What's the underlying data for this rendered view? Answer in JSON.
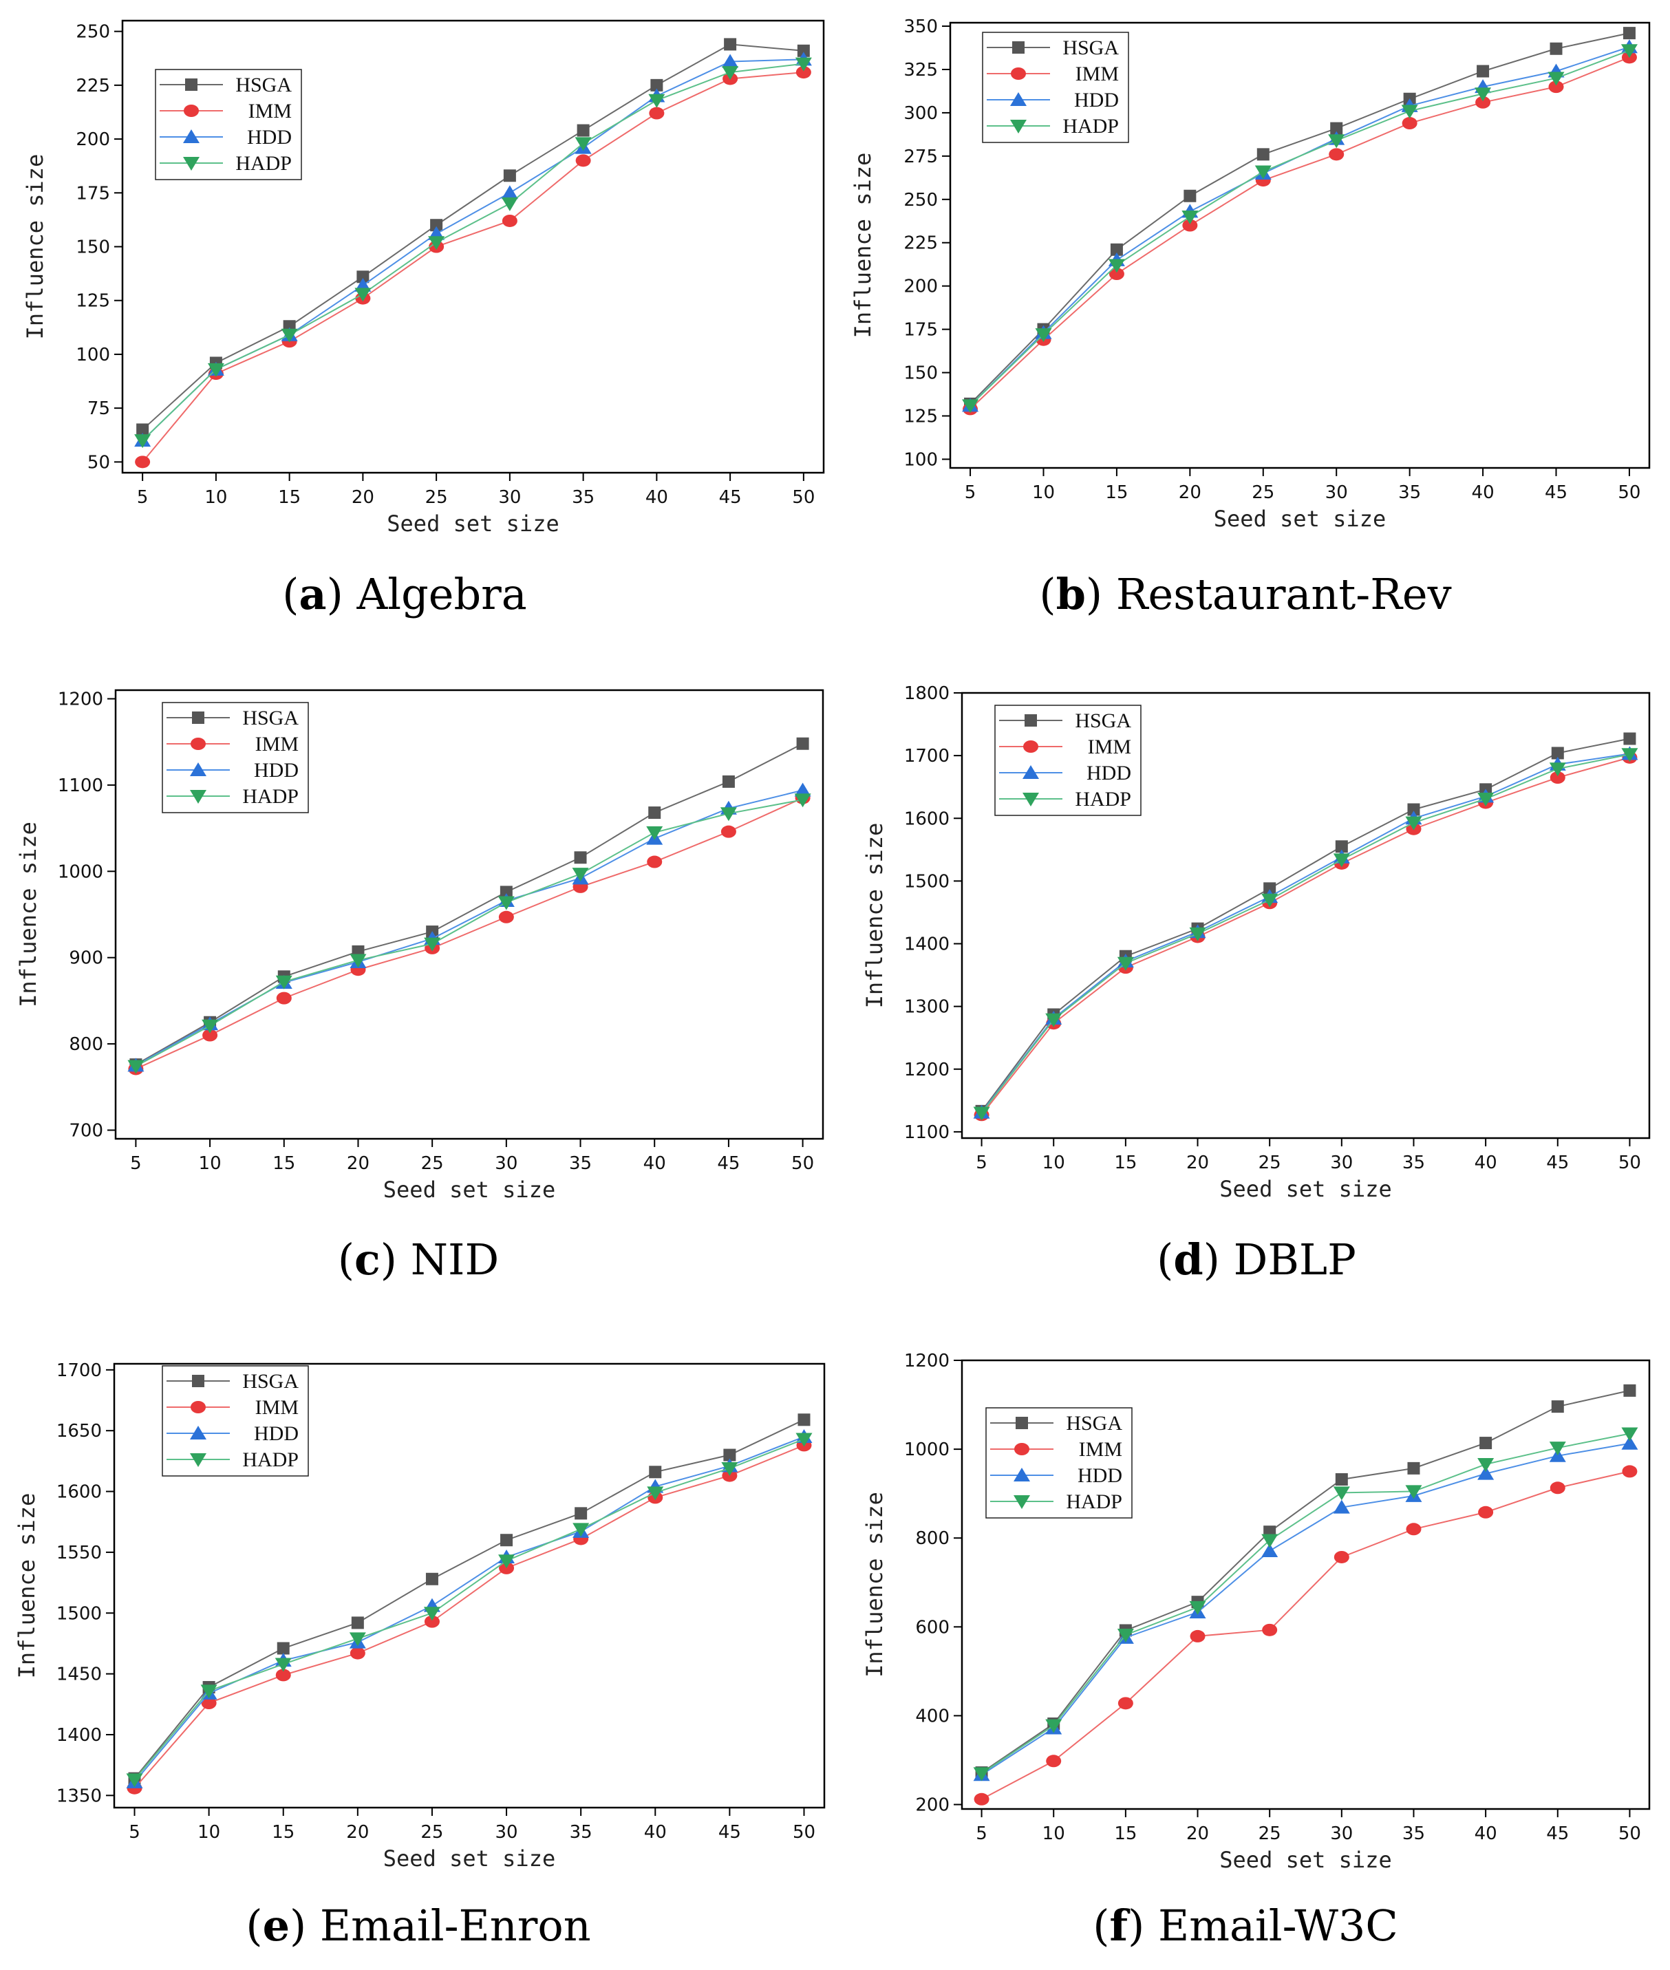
{
  "styles": {
    "series_colors": {
      "HSGA": "#555555",
      "IMM": "#e8393a",
      "HDD": "#2b72d8",
      "HADP": "#2fa35d"
    },
    "series_line_colors": {
      "HSGA": "#6a6a6a",
      "IMM": "#ef6a6a",
      "HDD": "#4d8fe6",
      "HADP": "#5cc08a"
    },
    "series_markers": {
      "HSGA": "square",
      "IMM": "circle",
      "HDD": "triangle-up",
      "HADP": "triangle-down"
    }
  },
  "chart_data": [
    {
      "type": "line",
      "caption_letter": "a",
      "caption_name": "Algebra",
      "xlabel": "Seed set size",
      "ylabel": "Influence size",
      "x": [
        5,
        10,
        15,
        20,
        25,
        30,
        35,
        40,
        45,
        50
      ],
      "ylim": [
        45,
        255
      ],
      "yticks": [
        50,
        75,
        100,
        125,
        150,
        175,
        200,
        225,
        250
      ],
      "series": [
        {
          "name": "HSGA",
          "values": [
            65,
            96,
            113,
            136,
            160,
            183,
            204,
            225,
            244,
            241
          ]
        },
        {
          "name": "IMM",
          "values": [
            50,
            91,
            106,
            126,
            150,
            162,
            190,
            212,
            228,
            231
          ]
        },
        {
          "name": "HDD",
          "values": [
            60,
            93,
            109,
            132,
            156,
            175,
            196,
            220,
            236,
            237
          ]
        },
        {
          "name": "HADP",
          "values": [
            60,
            93,
            109,
            128,
            152,
            170,
            198,
            218,
            231,
            235
          ]
        }
      ]
    },
    {
      "type": "line",
      "caption_letter": "b",
      "caption_name": "Restaurant-Rev",
      "xlabel": "Seed set size",
      "ylabel": "Influence size",
      "x": [
        5,
        10,
        15,
        20,
        25,
        30,
        35,
        40,
        45,
        50
      ],
      "ylim": [
        95,
        352
      ],
      "yticks": [
        100,
        125,
        150,
        175,
        200,
        225,
        250,
        275,
        300,
        325,
        350
      ],
      "series": [
        {
          "name": "HSGA",
          "values": [
            132,
            175,
            221,
            252,
            276,
            291,
            308,
            324,
            337,
            346
          ]
        },
        {
          "name": "IMM",
          "values": [
            129,
            169,
            207,
            235,
            261,
            276,
            294,
            306,
            315,
            332
          ]
        },
        {
          "name": "HDD",
          "values": [
            131,
            173,
            215,
            243,
            265,
            285,
            304,
            315,
            324,
            338
          ]
        },
        {
          "name": "HADP",
          "values": [
            131,
            172,
            212,
            240,
            266,
            284,
            301,
            311,
            320,
            336
          ]
        }
      ]
    },
    {
      "type": "line",
      "caption_letter": "c",
      "caption_name": "NID",
      "xlabel": "Seed set size",
      "ylabel": "Influence size",
      "x": [
        5,
        10,
        15,
        20,
        25,
        30,
        35,
        40,
        45,
        50
      ],
      "ylim": [
        690,
        1210
      ],
      "yticks": [
        700,
        800,
        900,
        1000,
        1100,
        1200
      ],
      "series": [
        {
          "name": "HSGA",
          "values": [
            776,
            825,
            878,
            907,
            930,
            976,
            1016,
            1068,
            1104,
            1148
          ]
        },
        {
          "name": "IMM",
          "values": [
            771,
            810,
            853,
            886,
            911,
            947,
            982,
            1011,
            1046,
            1085
          ]
        },
        {
          "name": "HDD",
          "values": [
            775,
            823,
            871,
            895,
            922,
            966,
            992,
            1038,
            1073,
            1094
          ]
        },
        {
          "name": "HADP",
          "values": [
            774,
            821,
            872,
            897,
            916,
            964,
            997,
            1045,
            1067,
            1083
          ]
        }
      ]
    },
    {
      "type": "line",
      "caption_letter": "d",
      "caption_name": "DBLP",
      "xlabel": "Seed set size",
      "ylabel": "Influence size",
      "x": [
        5,
        10,
        15,
        20,
        25,
        30,
        35,
        40,
        45,
        50
      ],
      "ylim": [
        1090,
        1800
      ],
      "yticks": [
        1100,
        1200,
        1300,
        1400,
        1500,
        1600,
        1700,
        1800
      ],
      "series": [
        {
          "name": "HSGA",
          "values": [
            1133,
            1287,
            1380,
            1424,
            1488,
            1555,
            1614,
            1646,
            1704,
            1727
          ]
        },
        {
          "name": "IMM",
          "values": [
            1127,
            1273,
            1362,
            1411,
            1465,
            1528,
            1583,
            1625,
            1665,
            1697
          ]
        },
        {
          "name": "HDD",
          "values": [
            1131,
            1281,
            1372,
            1419,
            1475,
            1538,
            1600,
            1635,
            1686,
            1703
          ]
        },
        {
          "name": "HADP",
          "values": [
            1130,
            1279,
            1369,
            1416,
            1470,
            1534,
            1593,
            1631,
            1679,
            1702
          ]
        }
      ]
    },
    {
      "type": "line",
      "caption_letter": "e",
      "caption_name": "Email-Enron",
      "xlabel": "Seed set size",
      "ylabel": "Influence size",
      "x": [
        5,
        10,
        15,
        20,
        25,
        30,
        35,
        40,
        45,
        50
      ],
      "ylim": [
        1340,
        1705
      ],
      "yticks": [
        1350,
        1400,
        1450,
        1500,
        1550,
        1600,
        1650,
        1700
      ],
      "series": [
        {
          "name": "HSGA",
          "values": [
            1364,
            1439,
            1471,
            1492,
            1528,
            1560,
            1582,
            1616,
            1630,
            1659
          ]
        },
        {
          "name": "IMM",
          "values": [
            1356,
            1426,
            1449,
            1467,
            1493,
            1537,
            1561,
            1595,
            1613,
            1638
          ]
        },
        {
          "name": "HDD",
          "values": [
            1361,
            1434,
            1461,
            1476,
            1506,
            1546,
            1567,
            1604,
            1621,
            1645
          ]
        },
        {
          "name": "HADP",
          "values": [
            1363,
            1436,
            1458,
            1479,
            1500,
            1543,
            1569,
            1599,
            1619,
            1643
          ]
        }
      ]
    },
    {
      "type": "line",
      "caption_letter": "f",
      "caption_name": "Email-W3C",
      "xlabel": "Seed set size",
      "ylabel": "Influence size",
      "x": [
        5,
        10,
        15,
        20,
        25,
        30,
        35,
        40,
        45,
        50
      ],
      "ylim": [
        190,
        1200
      ],
      "yticks": [
        200,
        400,
        600,
        800,
        1000,
        1200
      ],
      "series": [
        {
          "name": "HSGA",
          "values": [
            272,
            382,
            592,
            656,
            814,
            932,
            957,
            1014,
            1096,
            1132
          ]
        },
        {
          "name": "IMM",
          "values": [
            212,
            298,
            428,
            579,
            593,
            757,
            820,
            858,
            913,
            950
          ]
        },
        {
          "name": "HDD",
          "values": [
            267,
            372,
            576,
            633,
            771,
            869,
            895,
            945,
            985,
            1013
          ]
        },
        {
          "name": "HADP",
          "values": [
            270,
            378,
            582,
            644,
            795,
            902,
            905,
            966,
            1003,
            1035
          ]
        }
      ]
    }
  ]
}
